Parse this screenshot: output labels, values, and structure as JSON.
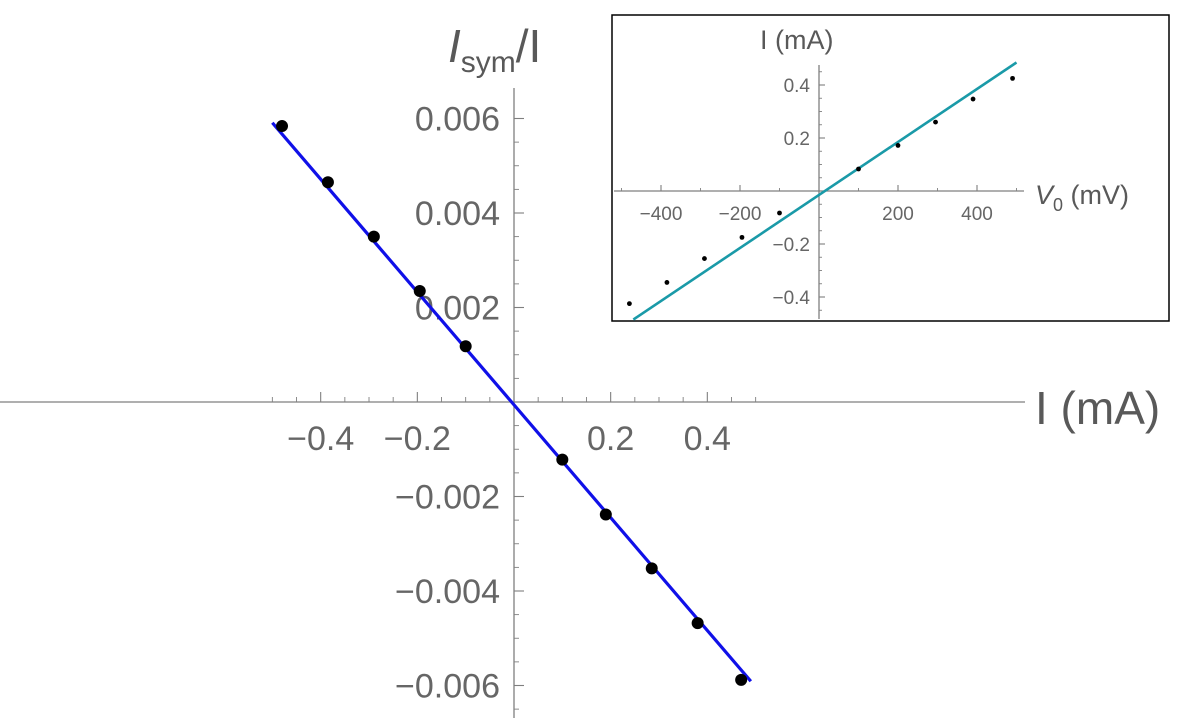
{
  "colors": {
    "main_fit": "#1010e8",
    "inset_fit": "#1a9aa8",
    "points": "#000000",
    "axis": "#7f7f7f",
    "text": "#666666"
  },
  "chart_data": [
    {
      "type": "scatter",
      "role": "main",
      "ylabel_main": "I",
      "ylabel_sub": "sym",
      "ylabel_tail": "/I",
      "xlabel": "I (mA)",
      "xlim": [
        -0.5,
        0.5
      ],
      "ylim": [
        -0.0065,
        0.0065
      ],
      "xticks": [
        -0.4,
        -0.2,
        0.2,
        0.4
      ],
      "xtick_labels": [
        "−0.4",
        "−0.2",
        "0.2",
        "0.4"
      ],
      "yticks": [
        0.006,
        0.004,
        0.002,
        -0.002,
        -0.004,
        -0.006
      ],
      "ytick_labels": [
        "0.006",
        "0.004",
        "0.002",
        "−0.002",
        "−0.004",
        "−0.006"
      ],
      "series": [
        {
          "kind": "points",
          "x": [
            -0.48,
            -0.385,
            -0.29,
            -0.195,
            -0.1,
            0.1,
            0.19,
            0.285,
            0.38,
            0.47
          ],
          "y": [
            0.00584,
            0.00465,
            0.0035,
            0.00235,
            0.00118,
            -0.00122,
            -0.00238,
            -0.00352,
            -0.00468,
            -0.00588
          ]
        },
        {
          "kind": "line",
          "x": [
            -0.5,
            0.49
          ],
          "y": [
            0.00591,
            -0.00591
          ]
        }
      ]
    },
    {
      "type": "scatter",
      "role": "inset",
      "ylabel": "I (mA)",
      "xlabel_main": "V",
      "xlabel_sub": "0",
      "xlabel_tail": " (mV)",
      "xlim": [
        -500,
        500
      ],
      "ylim": [
        -0.47,
        0.47
      ],
      "xticks": [
        -400,
        -200,
        200,
        400
      ],
      "xtick_labels": [
        "−400",
        "−200",
        "200",
        "400"
      ],
      "yticks": [
        0.4,
        0.2,
        -0.2,
        -0.4
      ],
      "ytick_labels": [
        "0.4",
        "0.2",
        "−0.2",
        "−0.4"
      ],
      "series": [
        {
          "kind": "points",
          "x": [
            -480,
            -385,
            -290,
            -195,
            -100,
            100,
            200,
            295,
            390,
            490
          ],
          "y": [
            -0.425,
            -0.345,
            -0.255,
            -0.175,
            -0.083,
            0.083,
            0.172,
            0.26,
            0.347,
            0.425
          ]
        },
        {
          "kind": "line",
          "x": [
            -470,
            500
          ],
          "y": [
            -0.485,
            0.485
          ]
        }
      ]
    }
  ]
}
